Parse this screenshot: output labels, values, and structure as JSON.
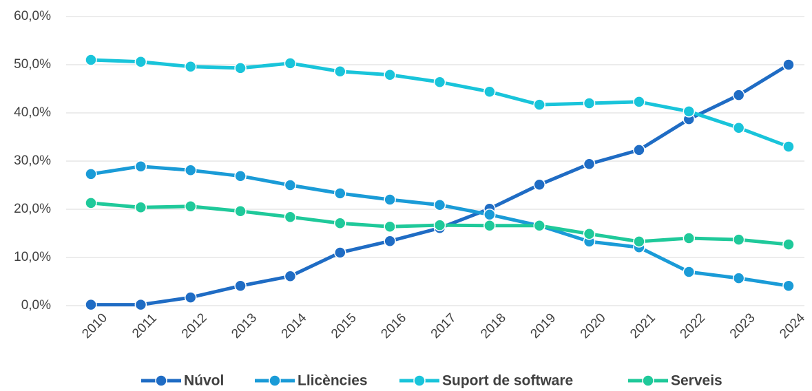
{
  "chart_data": {
    "type": "line",
    "categories": [
      "2010",
      "2011",
      "2012",
      "2013",
      "2014",
      "2015",
      "2016",
      "2017",
      "2018",
      "2019",
      "2020",
      "2021",
      "2022",
      "2023",
      "2024"
    ],
    "ylim": [
      0,
      60
    ],
    "yticks": [
      {
        "value": 0,
        "label": "0,0%"
      },
      {
        "value": 10,
        "label": "10,0%"
      },
      {
        "value": 20,
        "label": "20,0%"
      },
      {
        "value": 30,
        "label": "30,0%"
      },
      {
        "value": 40,
        "label": "40,0%"
      },
      {
        "value": 50,
        "label": "50,0%"
      },
      {
        "value": 60,
        "label": "60,0%"
      }
    ],
    "grid": true,
    "legend": "bottom",
    "series": [
      {
        "name": "Núvol",
        "color": "#1f6cc4",
        "values": [
          0.2,
          0.2,
          1.7,
          4.1,
          6.1,
          11.0,
          13.4,
          16.1,
          20.1,
          25.1,
          29.4,
          32.3,
          38.7,
          43.7,
          50.0
        ]
      },
      {
        "name": "Llicències",
        "color": "#1a9bd7",
        "values": [
          27.3,
          28.9,
          28.1,
          26.9,
          25.0,
          23.3,
          22.0,
          20.9,
          18.9,
          16.6,
          13.3,
          12.1,
          7.0,
          5.7,
          4.1
        ]
      },
      {
        "name": "Suport de software",
        "color": "#19c4da",
        "values": [
          51.0,
          50.6,
          49.6,
          49.3,
          50.3,
          48.6,
          47.9,
          46.4,
          44.4,
          41.7,
          42.0,
          42.3,
          40.3,
          36.9,
          33.0
        ]
      },
      {
        "name": "Serveis",
        "color": "#1fc99a",
        "values": [
          21.3,
          20.4,
          20.6,
          19.6,
          18.4,
          17.1,
          16.4,
          16.7,
          16.6,
          16.6,
          14.9,
          13.3,
          14.0,
          13.7,
          12.7
        ]
      }
    ]
  }
}
